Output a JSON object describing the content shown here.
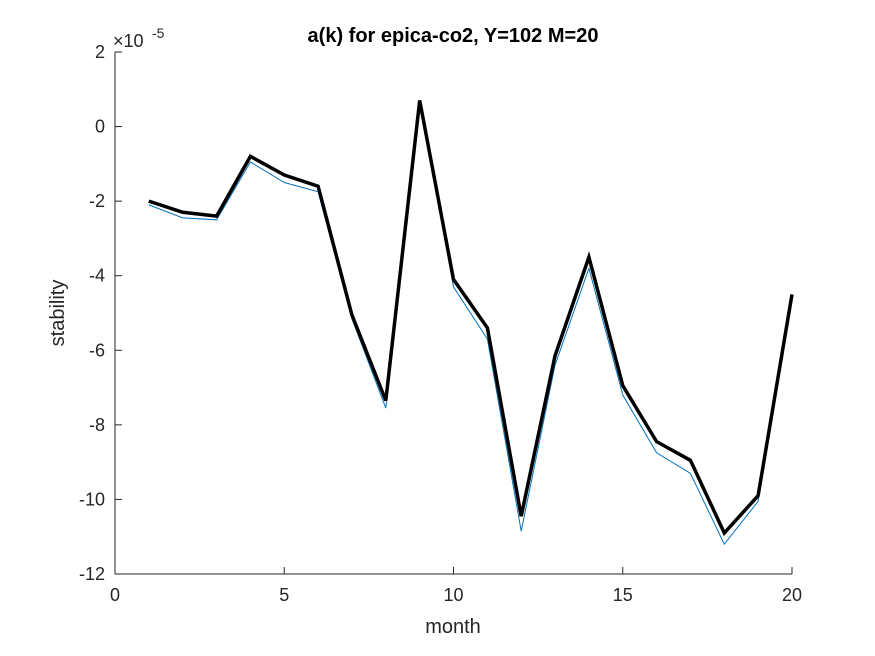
{
  "chart_data": {
    "type": "line",
    "title": "a(k) for epica-co2, Y=102 M=20",
    "xlabel": "month",
    "ylabel": "stability",
    "y_exponent_label": "×10",
    "y_exponent_power": "-5",
    "xlim": [
      0,
      20
    ],
    "ylim": [
      -12,
      2
    ],
    "x_ticks": [
      "0",
      "5",
      "10",
      "15",
      "20"
    ],
    "y_ticks": [
      "2",
      "0",
      "-2",
      "-4",
      "-6",
      "-8",
      "-10",
      "-12"
    ],
    "grid": false,
    "x": [
      1,
      2,
      3,
      4,
      5,
      6,
      7,
      8,
      9,
      10,
      11,
      12,
      13,
      14,
      15,
      16,
      17,
      18,
      19,
      20
    ],
    "series": [
      {
        "color": "#0072BD",
        "line_width": "thin",
        "values": [
          -2.1,
          -2.45,
          -2.5,
          -0.95,
          -1.5,
          -1.75,
          -5.15,
          -7.55,
          0.7,
          -4.3,
          -5.7,
          -10.85,
          -6.4,
          -3.8,
          -7.2,
          -8.75,
          -9.3,
          -11.2,
          -10.05,
          -4.5
        ]
      },
      {
        "color": "#000000",
        "line_width": "thick",
        "values": [
          -2.0,
          -2.3,
          -2.4,
          -0.8,
          -1.3,
          -1.6,
          -5.05,
          -7.35,
          0.7,
          -4.1,
          -5.4,
          -10.45,
          -6.15,
          -3.5,
          -6.95,
          -8.45,
          -8.95,
          -10.9,
          -9.9,
          -4.5
        ]
      }
    ]
  }
}
